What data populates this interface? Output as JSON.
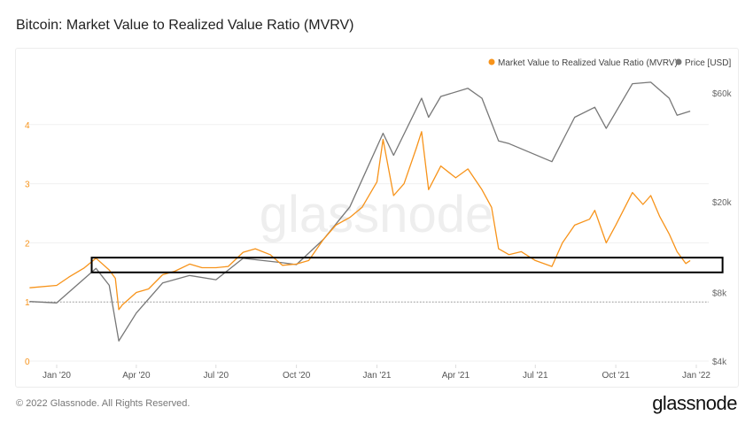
{
  "title": "Bitcoin: Market Value to Realized Value Ratio (MVRV)",
  "footer": "© 2022 Glassnode. All Rights Reserved.",
  "logo": "glassnode",
  "watermark": "glassnode",
  "chart_data": {
    "type": "line",
    "legend_position": "top-right",
    "x_ticks": [
      "Jan '20",
      "Apr '20",
      "Jul '20",
      "Oct '20",
      "Jan '21",
      "Apr '21",
      "Jul '21",
      "Oct '21",
      "Jan '22"
    ],
    "y_left": {
      "ticks": [
        "0",
        "1",
        "2",
        "3",
        "4"
      ],
      "range": [
        0,
        4.8
      ],
      "color": "#f7931a"
    },
    "y_right": {
      "ticks": [
        "$4k",
        "$8k",
        "$20k",
        "$60k"
      ],
      "tick_values": [
        4000,
        8000,
        20000,
        60000
      ],
      "scale": "log",
      "color": "#666666"
    },
    "reference_line": {
      "axis": "left",
      "value": 1,
      "style": "dotted"
    },
    "annotation_box": {
      "mvrv_range": [
        1.5,
        1.75
      ],
      "x_range": [
        "2020-02-10",
        "2022-01-31"
      ]
    },
    "series": [
      {
        "name": "Market Value to Realized Value Ratio (MVRV)",
        "color": "#f7931a",
        "axis": "left",
        "points": [
          [
            "2019-12-01",
            1.24
          ],
          [
            "2020-01-01",
            1.28
          ],
          [
            "2020-01-15",
            1.42
          ],
          [
            "2020-02-01",
            1.57
          ],
          [
            "2020-02-15",
            1.74
          ],
          [
            "2020-03-01",
            1.54
          ],
          [
            "2020-03-08",
            1.4
          ],
          [
            "2020-03-12",
            0.87
          ],
          [
            "2020-03-16",
            0.95
          ],
          [
            "2020-04-01",
            1.16
          ],
          [
            "2020-04-15",
            1.22
          ],
          [
            "2020-05-01",
            1.46
          ],
          [
            "2020-05-15",
            1.52
          ],
          [
            "2020-06-01",
            1.64
          ],
          [
            "2020-06-15",
            1.58
          ],
          [
            "2020-07-01",
            1.58
          ],
          [
            "2020-07-15",
            1.6
          ],
          [
            "2020-08-01",
            1.84
          ],
          [
            "2020-08-15",
            1.9
          ],
          [
            "2020-09-01",
            1.8
          ],
          [
            "2020-09-15",
            1.62
          ],
          [
            "2020-10-01",
            1.64
          ],
          [
            "2020-10-15",
            1.7
          ],
          [
            "2020-11-01",
            2.06
          ],
          [
            "2020-11-15",
            2.3
          ],
          [
            "2020-12-01",
            2.43
          ],
          [
            "2020-12-15",
            2.6
          ],
          [
            "2021-01-01",
            3.03
          ],
          [
            "2021-01-08",
            3.75
          ],
          [
            "2021-01-20",
            2.8
          ],
          [
            "2021-02-01",
            3.0
          ],
          [
            "2021-02-15",
            3.6
          ],
          [
            "2021-02-21",
            3.88
          ],
          [
            "2021-03-01",
            2.9
          ],
          [
            "2021-03-15",
            3.3
          ],
          [
            "2021-04-01",
            3.1
          ],
          [
            "2021-04-15",
            3.25
          ],
          [
            "2021-05-01",
            2.9
          ],
          [
            "2021-05-12",
            2.6
          ],
          [
            "2021-05-20",
            1.9
          ],
          [
            "2021-06-01",
            1.8
          ],
          [
            "2021-06-15",
            1.85
          ],
          [
            "2021-07-01",
            1.7
          ],
          [
            "2021-07-20",
            1.6
          ],
          [
            "2021-08-01",
            2.0
          ],
          [
            "2021-08-15",
            2.3
          ],
          [
            "2021-09-01",
            2.4
          ],
          [
            "2021-09-07",
            2.55
          ],
          [
            "2021-09-20",
            2.0
          ],
          [
            "2021-10-01",
            2.3
          ],
          [
            "2021-10-20",
            2.85
          ],
          [
            "2021-11-01",
            2.65
          ],
          [
            "2021-11-10",
            2.8
          ],
          [
            "2021-11-20",
            2.45
          ],
          [
            "2021-12-01",
            2.15
          ],
          [
            "2021-12-10",
            1.85
          ],
          [
            "2021-12-20",
            1.65
          ],
          [
            "2021-12-25",
            1.7
          ]
        ]
      },
      {
        "name": "Price [USD]",
        "color": "#777777",
        "axis": "right",
        "points": [
          [
            "2019-12-01",
            7300
          ],
          [
            "2020-01-01",
            7200
          ],
          [
            "2020-02-15",
            10200
          ],
          [
            "2020-03-01",
            8600
          ],
          [
            "2020-03-12",
            4900
          ],
          [
            "2020-04-01",
            6500
          ],
          [
            "2020-05-01",
            8800
          ],
          [
            "2020-06-01",
            9500
          ],
          [
            "2020-07-01",
            9100
          ],
          [
            "2020-08-01",
            11300
          ],
          [
            "2020-09-15",
            10800
          ],
          [
            "2020-10-01",
            10600
          ],
          [
            "2020-11-01",
            13700
          ],
          [
            "2020-12-01",
            19000
          ],
          [
            "2021-01-08",
            40000
          ],
          [
            "2021-01-20",
            32000
          ],
          [
            "2021-02-21",
            57000
          ],
          [
            "2021-03-01",
            47000
          ],
          [
            "2021-03-15",
            58000
          ],
          [
            "2021-04-15",
            63000
          ],
          [
            "2021-05-01",
            57000
          ],
          [
            "2021-05-20",
            37000
          ],
          [
            "2021-06-01",
            36000
          ],
          [
            "2021-07-20",
            30000
          ],
          [
            "2021-08-15",
            47000
          ],
          [
            "2021-09-07",
            52000
          ],
          [
            "2021-09-20",
            42000
          ],
          [
            "2021-10-20",
            66000
          ],
          [
            "2021-11-10",
            67000
          ],
          [
            "2021-12-01",
            57000
          ],
          [
            "2021-12-10",
            48000
          ],
          [
            "2021-12-25",
            50000
          ]
        ]
      }
    ]
  }
}
